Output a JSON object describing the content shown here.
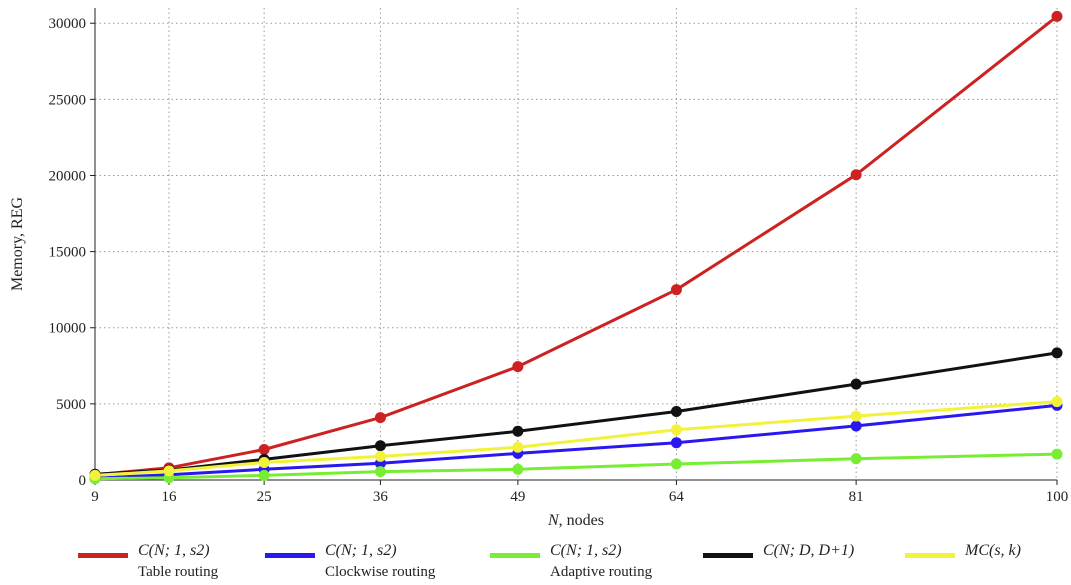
{
  "chart_data": {
    "type": "line",
    "title": "",
    "xlabel_var": "N",
    "xlabel_rest": ", nodes",
    "ylabel": "Memory, REG",
    "x": [
      9,
      16,
      25,
      36,
      49,
      64,
      81,
      100
    ],
    "xticks": [
      "9",
      "16",
      "25",
      "36",
      "49",
      "64",
      "81",
      "100"
    ],
    "yticks": [
      "0",
      "5000",
      "10000",
      "15000",
      "20000",
      "25000",
      "30000"
    ],
    "ylim": [
      0,
      31000
    ],
    "grid": true,
    "legend_position": "bottom",
    "series": [
      {
        "name": "C(N; 1, s2)",
        "name_sub": "Table routing",
        "color": "#cc2222",
        "values": [
          350,
          800,
          2000,
          4100,
          7450,
          12500,
          20050,
          30450
        ]
      },
      {
        "name": "C(N; 1, s2)",
        "name_sub": "Clockwise routing",
        "color": "#2a18f0",
        "values": [
          120,
          350,
          700,
          1100,
          1750,
          2450,
          3550,
          4900
        ]
      },
      {
        "name": "C(N; 1, s2)",
        "name_sub": "Adaptive routing",
        "color": "#77ee33",
        "values": [
          80,
          150,
          300,
          550,
          700,
          1050,
          1400,
          1700
        ]
      },
      {
        "name": "C(N; D, D+1)",
        "name_sub": "",
        "color": "#111111",
        "values": [
          380,
          650,
          1350,
          2250,
          3200,
          4500,
          6300,
          8350
        ]
      },
      {
        "name": "MC(s, k)",
        "name_sub": "",
        "color": "#f2f23a",
        "values": [
          300,
          600,
          1150,
          1550,
          2150,
          3300,
          4200,
          5150
        ]
      }
    ]
  }
}
